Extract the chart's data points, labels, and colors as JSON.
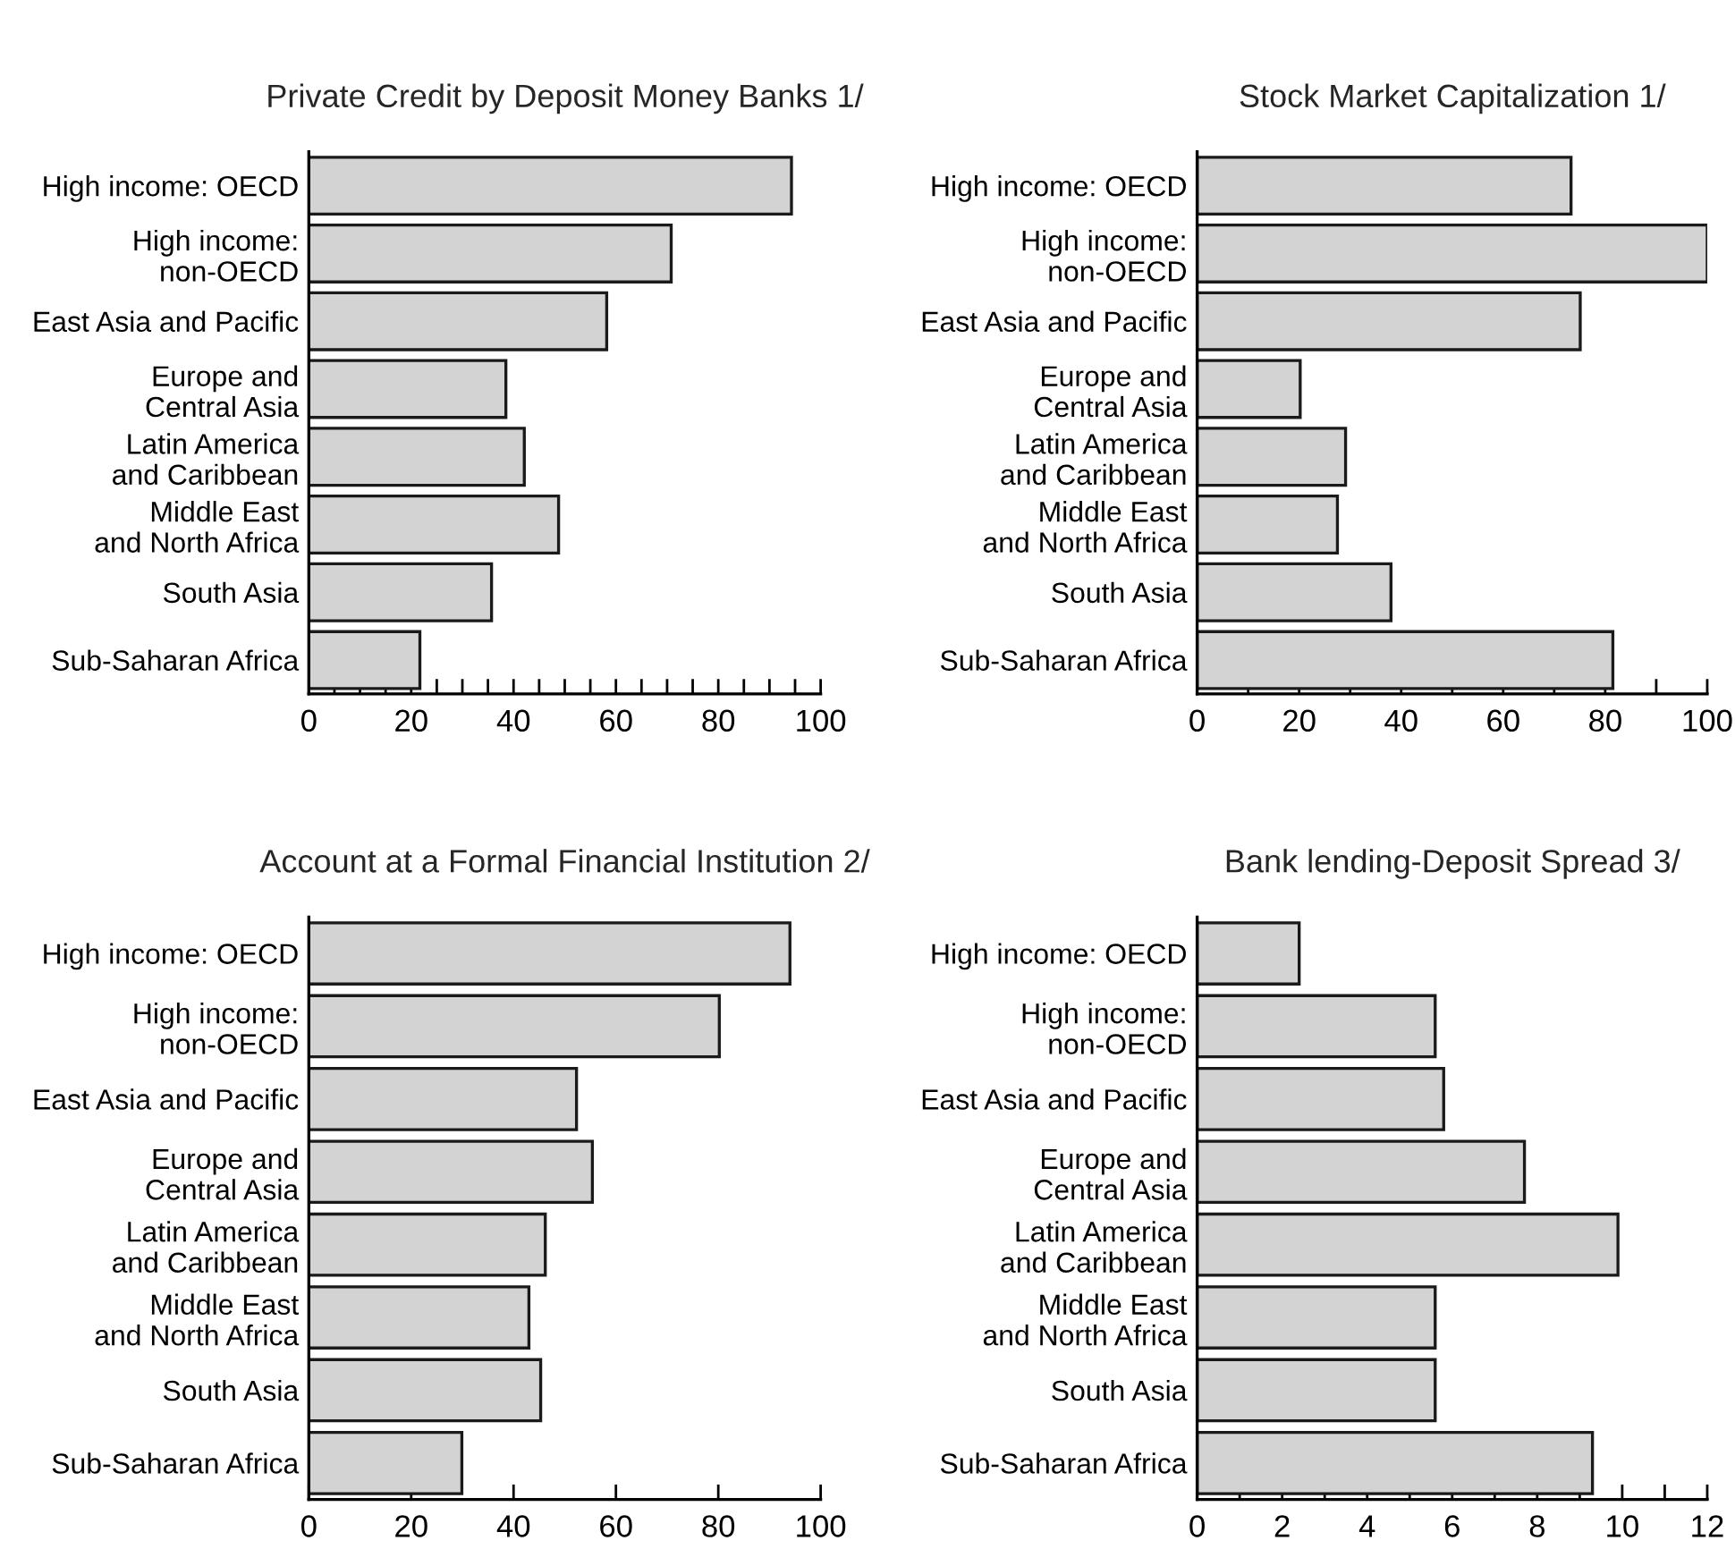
{
  "chart_data": [
    {
      "type": "bar",
      "orientation": "horizontal",
      "title": "Private Credit by Deposit Money Banks 1/",
      "categories": [
        "High income: OECD",
        "High income:\nnon-OECD",
        "East Asia and Pacific",
        "Europe and\nCentral Asia",
        "Latin America\nand Caribbean",
        "Middle East\nand North Africa",
        "South Asia",
        "Sub-Saharan Africa"
      ],
      "color": "#d3d3d3",
      "values": [
        94.3,
        70.8,
        58.2,
        38.5,
        42.1,
        48.8,
        35.7,
        21.7
      ],
      "xlim": [
        0,
        100
      ],
      "xticks": [
        0,
        {
          "value": 5,
          "label": null
        },
        {
          "value": 10,
          "label": null
        },
        {
          "value": 15,
          "label": null
        },
        20,
        {
          "value": 25,
          "label": null
        },
        {
          "value": 30,
          "label": null
        },
        {
          "value": 35,
          "label": null
        },
        40,
        {
          "value": 45,
          "label": null
        },
        {
          "value": 50,
          "label": null
        },
        {
          "value": 55,
          "label": null
        },
        60,
        {
          "value": 65,
          "label": null
        },
        {
          "value": 70,
          "label": null
        },
        {
          "value": 75,
          "label": null
        },
        80,
        {
          "value": 85,
          "label": null
        },
        {
          "value": 90,
          "label": null
        },
        {
          "value": 95,
          "label": null
        },
        100
      ],
      "grid": false,
      "legend": false
    },
    {
      "type": "bar",
      "orientation": "horizontal",
      "title": "Stock Market Capitalization 1/",
      "categories": [
        "High income: OECD",
        "High income:\nnon-OECD",
        "East Asia and Pacific",
        "Europe and\nCentral Asia",
        "Latin America\nand Caribbean",
        "Middle East\nand North Africa",
        "South Asia",
        "Sub-Saharan Africa"
      ],
      "color": "#d3d3d3",
      "values": [
        73.3,
        100,
        75.1,
        20.2,
        29.1,
        27.5,
        38.0,
        81.5
      ],
      "xlim": [
        0,
        100
      ],
      "xticks": [
        0,
        {
          "value": 10,
          "label": null
        },
        20,
        {
          "value": 30,
          "label": null
        },
        40,
        {
          "value": 50,
          "label": null
        },
        60,
        {
          "value": 70,
          "label": null
        },
        80,
        {
          "value": 90,
          "label": null
        },
        100
      ],
      "grid": false,
      "legend": false
    },
    {
      "type": "bar",
      "orientation": "horizontal",
      "title": "Account at a Formal Financial Institution 2/",
      "categories": [
        "High income: OECD",
        "High income:\nnon-OECD",
        "East Asia and Pacific",
        "Europe and\nCentral Asia",
        "Latin America\nand Caribbean",
        "Middle East\nand North Africa",
        "South Asia",
        "Sub-Saharan Africa"
      ],
      "color": "#d3d3d3",
      "values": [
        94.0,
        80.2,
        52.3,
        55.4,
        46.2,
        43.0,
        45.3,
        29.9
      ],
      "xlim": [
        0,
        100
      ],
      "xticks": [
        0,
        20,
        40,
        60,
        80,
        100
      ],
      "grid": false,
      "legend": false
    },
    {
      "type": "bar",
      "orientation": "horizontal",
      "title": "Bank lending-Deposit Spread 3/",
      "categories": [
        "High income: OECD",
        "High income:\nnon-OECD",
        "East Asia and Pacific",
        "Europe and\nCentral Asia",
        "Latin America\nand Caribbean",
        "Middle East\nand North Africa",
        "South Asia",
        "Sub-Saharan Africa"
      ],
      "color": "#d3d3d3",
      "values": [
        2.4,
        5.6,
        5.8,
        7.7,
        9.9,
        5.6,
        5.6,
        9.3
      ],
      "xlim": [
        0,
        12
      ],
      "xticks": [
        0,
        {
          "value": 1,
          "label": null
        },
        2,
        {
          "value": 3,
          "label": null
        },
        4,
        {
          "value": 5,
          "label": null
        },
        6,
        {
          "value": 7,
          "label": null
        },
        8,
        {
          "value": 9,
          "label": null
        },
        10,
        {
          "value": 11,
          "label": null
        },
        12
      ],
      "grid": false,
      "legend": false
    }
  ]
}
